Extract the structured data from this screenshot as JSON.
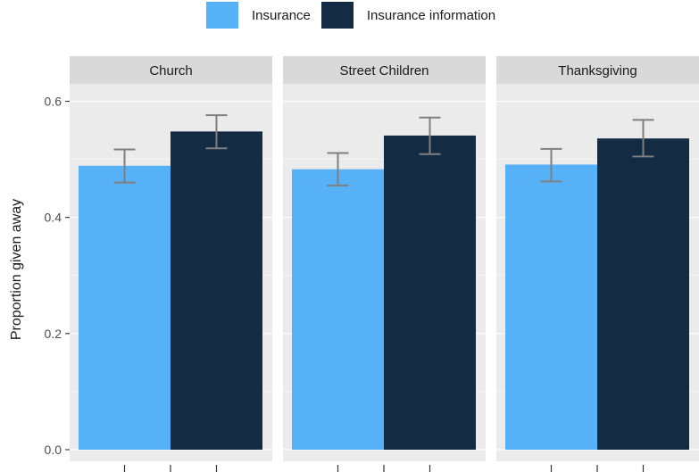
{
  "chart_data": {
    "type": "bar",
    "facets": [
      "Church",
      "Street Children",
      "Thanksgiving"
    ],
    "series": [
      {
        "name": "Insurance",
        "color": "#56B1F7",
        "values": [
          0.489,
          0.483,
          0.491
        ],
        "error_low": [
          0.46,
          0.455,
          0.462
        ],
        "error_high": [
          0.517,
          0.511,
          0.518
        ]
      },
      {
        "name": "Insurance information",
        "color": "#132B43",
        "values": [
          0.548,
          0.541,
          0.536
        ],
        "error_low": [
          0.519,
          0.509,
          0.505
        ],
        "error_high": [
          0.576,
          0.572,
          0.568
        ]
      }
    ],
    "ylabel": "Proportion given away",
    "ylim": [
      -0.02,
      0.63
    ],
    "yticks": [
      0.0,
      0.2,
      0.4,
      0.6
    ],
    "ytick_labels": [
      "0.0",
      "0.2",
      "0.4",
      "0.6"
    ],
    "legend_position": "top",
    "grid": true,
    "panel_background": "#EBEBEB",
    "strip_background": "#D9D9D9",
    "errorbar_color": "#7F7F7F"
  }
}
